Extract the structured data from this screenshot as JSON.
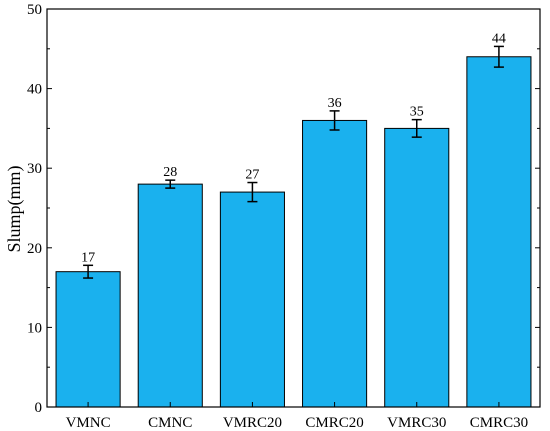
{
  "chart_data": {
    "type": "bar",
    "title": "",
    "xlabel": "",
    "ylabel": "Slump(mm)",
    "ylim": [
      0,
      50
    ],
    "yticks": [
      0,
      10,
      20,
      30,
      40,
      50
    ],
    "categories": [
      "VMNC",
      "CMNC",
      "VMRC20",
      "CMRC20",
      "VMRC30",
      "CMRC30"
    ],
    "values": [
      17,
      28,
      27,
      36,
      35,
      44
    ],
    "data_labels": [
      "17",
      "28",
      "27",
      "36",
      "35",
      "44"
    ],
    "errors": [
      0.8,
      0.5,
      1.2,
      1.2,
      1.1,
      1.3
    ],
    "bar_color": "#1AB1EE",
    "grid": false,
    "legend": "none"
  }
}
